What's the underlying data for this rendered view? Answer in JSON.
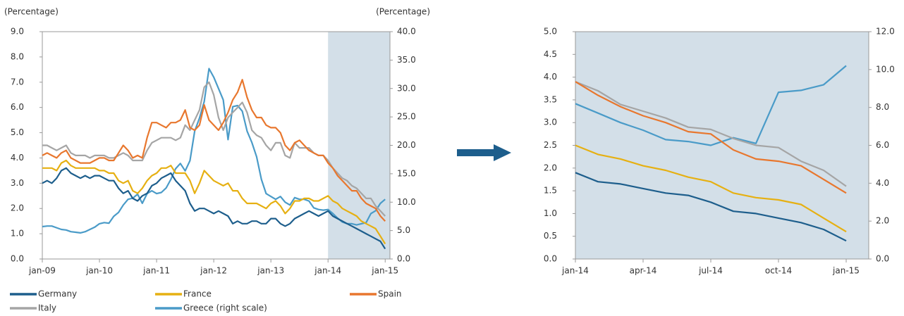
{
  "chart_data": [
    {
      "type": "line",
      "y_label": "(Percentage)",
      "y2_label": "(Percentage)",
      "highlight_range": [
        "2014-01",
        "2015-02"
      ],
      "xlim": [
        "2009-01",
        "2015-02"
      ],
      "xticks": [
        {
          "value": "2009-01",
          "label": "jan-09"
        },
        {
          "value": "2010-01",
          "label": "jan-10"
        },
        {
          "value": "2011-01",
          "label": "jan-11"
        },
        {
          "value": "2012-01",
          "label": "jan-12"
        },
        {
          "value": "2013-01",
          "label": "jan-13"
        },
        {
          "value": "2014-01",
          "label": "jan-14"
        },
        {
          "value": "2015-01",
          "label": "jan-15"
        }
      ],
      "ylim": [
        0,
        9
      ],
      "yticks": [
        {
          "value": 0,
          "label": "0.0"
        },
        {
          "value": 1,
          "label": "1.0"
        },
        {
          "value": 2,
          "label": "2.0"
        },
        {
          "value": 3,
          "label": "3.0"
        },
        {
          "value": 4,
          "label": "4.0"
        },
        {
          "value": 5,
          "label": "5.0"
        },
        {
          "value": 6,
          "label": "6.0"
        },
        {
          "value": 7,
          "label": "7.0"
        },
        {
          "value": 8,
          "label": "8.0"
        },
        {
          "value": 9,
          "label": "9.0"
        }
      ],
      "y2lim": [
        0,
        40
      ],
      "y2ticks": [
        {
          "value": 0,
          "label": "0.0"
        },
        {
          "value": 5,
          "label": "5.0"
        },
        {
          "value": 10,
          "label": "10.0"
        },
        {
          "value": 15,
          "label": "15.0"
        },
        {
          "value": 20,
          "label": "20.0"
        },
        {
          "value": 25,
          "label": "25.0"
        },
        {
          "value": 30,
          "label": "30.0"
        },
        {
          "value": 35,
          "label": "35.0"
        },
        {
          "value": 40,
          "label": "40.0"
        }
      ],
      "x": [
        "2009-01",
        "2009-02",
        "2009-03",
        "2009-04",
        "2009-05",
        "2009-06",
        "2009-07",
        "2009-08",
        "2009-09",
        "2009-10",
        "2009-11",
        "2009-12",
        "2010-01",
        "2010-02",
        "2010-03",
        "2010-04",
        "2010-05",
        "2010-06",
        "2010-07",
        "2010-08",
        "2010-09",
        "2010-10",
        "2010-11",
        "2010-12",
        "2011-01",
        "2011-02",
        "2011-03",
        "2011-04",
        "2011-05",
        "2011-06",
        "2011-07",
        "2011-08",
        "2011-09",
        "2011-10",
        "2011-11",
        "2011-12",
        "2012-01",
        "2012-02",
        "2012-03",
        "2012-04",
        "2012-05",
        "2012-06",
        "2012-07",
        "2012-08",
        "2012-09",
        "2012-10",
        "2012-11",
        "2012-12",
        "2013-01",
        "2013-02",
        "2013-03",
        "2013-04",
        "2013-05",
        "2013-06",
        "2013-07",
        "2013-08",
        "2013-09",
        "2013-10",
        "2013-11",
        "2013-12",
        "2014-01",
        "2014-02",
        "2014-03",
        "2014-04",
        "2014-05",
        "2014-06",
        "2014-07",
        "2014-08",
        "2014-09",
        "2014-10",
        "2014-11",
        "2014-12",
        "2015-01"
      ],
      "series": [
        {
          "name": "Germany",
          "color": "#1d5e8c",
          "values": [
            3.0,
            3.1,
            3.0,
            3.2,
            3.5,
            3.6,
            3.4,
            3.3,
            3.2,
            3.3,
            3.2,
            3.3,
            3.3,
            3.2,
            3.1,
            3.1,
            2.8,
            2.6,
            2.7,
            2.4,
            2.3,
            2.5,
            2.6,
            2.9,
            3.0,
            3.2,
            3.3,
            3.4,
            3.1,
            2.9,
            2.7,
            2.2,
            1.9,
            2.0,
            2.0,
            1.9,
            1.8,
            1.9,
            1.8,
            1.7,
            1.4,
            1.5,
            1.4,
            1.4,
            1.5,
            1.5,
            1.4,
            1.4,
            1.6,
            1.6,
            1.4,
            1.3,
            1.4,
            1.6,
            1.7,
            1.8,
            1.9,
            1.8,
            1.7,
            1.8,
            1.9,
            1.7,
            1.6,
            1.5,
            1.4,
            1.3,
            1.2,
            1.1,
            1.0,
            0.9,
            0.8,
            0.7,
            0.4
          ]
        },
        {
          "name": "France",
          "color": "#e6b012",
          "values": [
            3.6,
            3.6,
            3.6,
            3.5,
            3.8,
            3.9,
            3.7,
            3.6,
            3.6,
            3.6,
            3.6,
            3.6,
            3.5,
            3.5,
            3.4,
            3.4,
            3.1,
            3.0,
            3.1,
            2.7,
            2.6,
            2.8,
            3.1,
            3.3,
            3.4,
            3.6,
            3.6,
            3.7,
            3.4,
            3.4,
            3.4,
            3.1,
            2.6,
            3.0,
            3.5,
            3.3,
            3.1,
            3.0,
            2.9,
            3.0,
            2.7,
            2.7,
            2.4,
            2.2,
            2.2,
            2.2,
            2.1,
            2.0,
            2.2,
            2.3,
            2.1,
            1.8,
            2.0,
            2.3,
            2.3,
            2.4,
            2.4,
            2.3,
            2.3,
            2.4,
            2.5,
            2.3,
            2.2,
            2.0,
            1.9,
            1.8,
            1.7,
            1.5,
            1.4,
            1.3,
            1.2,
            0.9,
            0.6
          ]
        },
        {
          "name": "Spain",
          "color": "#e8772e",
          "values": [
            4.1,
            4.2,
            4.1,
            4.0,
            4.2,
            4.3,
            4.0,
            3.9,
            3.8,
            3.8,
            3.8,
            3.9,
            4.0,
            4.0,
            3.9,
            3.9,
            4.2,
            4.5,
            4.3,
            4.0,
            4.1,
            4.0,
            4.8,
            5.4,
            5.4,
            5.3,
            5.2,
            5.4,
            5.4,
            5.5,
            5.9,
            5.2,
            5.1,
            5.3,
            6.1,
            5.5,
            5.3,
            5.1,
            5.4,
            5.8,
            6.3,
            6.6,
            7.1,
            6.4,
            5.9,
            5.6,
            5.6,
            5.3,
            5.2,
            5.2,
            5.0,
            4.5,
            4.3,
            4.6,
            4.7,
            4.5,
            4.3,
            4.2,
            4.1,
            4.1,
            3.8,
            3.6,
            3.3,
            3.1,
            2.9,
            2.7,
            2.7,
            2.4,
            2.2,
            2.1,
            2.0,
            1.7,
            1.5
          ]
        },
        {
          "name": "Italy",
          "color": "#a5a5a5",
          "values": [
            4.5,
            4.5,
            4.4,
            4.3,
            4.4,
            4.5,
            4.2,
            4.1,
            4.1,
            4.1,
            4.0,
            4.1,
            4.1,
            4.1,
            4.0,
            4.0,
            4.1,
            4.2,
            4.1,
            3.9,
            3.9,
            3.9,
            4.3,
            4.6,
            4.7,
            4.8,
            4.8,
            4.8,
            4.7,
            4.8,
            5.3,
            5.1,
            5.5,
            5.9,
            6.8,
            7.0,
            6.5,
            5.6,
            5.1,
            5.6,
            5.8,
            6.0,
            6.2,
            5.8,
            5.1,
            4.9,
            4.8,
            4.5,
            4.3,
            4.6,
            4.6,
            4.1,
            4.0,
            4.6,
            4.4,
            4.4,
            4.4,
            4.2,
            4.1,
            4.1,
            3.9,
            3.6,
            3.4,
            3.2,
            3.1,
            2.9,
            2.8,
            2.6,
            2.4,
            2.4,
            2.1,
            1.9,
            1.7
          ]
        },
        {
          "name": "Greece (right scale)",
          "color": "#4a9bc8",
          "axis": "y2",
          "values": [
            5.7,
            5.8,
            5.8,
            5.5,
            5.2,
            5.1,
            4.8,
            4.7,
            4.6,
            4.8,
            5.2,
            5.6,
            6.2,
            6.4,
            6.3,
            7.5,
            8.2,
            9.5,
            10.5,
            10.7,
            11.4,
            9.8,
            11.5,
            12.0,
            11.5,
            11.7,
            12.5,
            14.0,
            15.9,
            16.8,
            15.5,
            17.3,
            22.5,
            24.8,
            27.7,
            33.5,
            32.0,
            30.0,
            28.0,
            21.0,
            26.8,
            27.0,
            26.0,
            22.5,
            20.5,
            18.0,
            14.0,
            11.5,
            11.0,
            10.5,
            11.0,
            10.0,
            9.5,
            10.8,
            10.5,
            10.5,
            10.2,
            9.0,
            8.7,
            8.6,
            8.7,
            8.0,
            7.2,
            6.5,
            6.2,
            6.2,
            6.0,
            6.2,
            6.4,
            8.0,
            8.5,
            9.8,
            10.5
          ]
        }
      ]
    },
    {
      "type": "line",
      "highlight_range": [
        "2014-01",
        "2015-02"
      ],
      "xlim": [
        "2014-01",
        "2015-02"
      ],
      "xticks": [
        {
          "value": "2014-01",
          "label": "jan-14"
        },
        {
          "value": "2014-04",
          "label": "apr-14"
        },
        {
          "value": "2014-07",
          "label": "jul-14"
        },
        {
          "value": "2014-10",
          "label": "oct-14"
        },
        {
          "value": "2015-01",
          "label": "jan-15"
        }
      ],
      "ylim": [
        0,
        5
      ],
      "yticks": [
        {
          "value": 0,
          "label": "0.0"
        },
        {
          "value": 0.5,
          "label": "0.5"
        },
        {
          "value": 1,
          "label": "1.0"
        },
        {
          "value": 1.5,
          "label": "1.5"
        },
        {
          "value": 2,
          "label": "2.0"
        },
        {
          "value": 2.5,
          "label": "2.5"
        },
        {
          "value": 3,
          "label": "3.0"
        },
        {
          "value": 3.5,
          "label": "3.5"
        },
        {
          "value": 4,
          "label": "4.0"
        },
        {
          "value": 4.5,
          "label": "4.5"
        },
        {
          "value": 5,
          "label": "5.0"
        }
      ],
      "y2lim": [
        0,
        12
      ],
      "y2ticks": [
        {
          "value": 0,
          "label": "0.0"
        },
        {
          "value": 2,
          "label": "2.0"
        },
        {
          "value": 4,
          "label": "4.0"
        },
        {
          "value": 6,
          "label": "6.0"
        },
        {
          "value": 8,
          "label": "8.0"
        },
        {
          "value": 10,
          "label": "10.0"
        },
        {
          "value": 12,
          "label": "12.0"
        }
      ],
      "x": [
        "2014-01",
        "2014-02",
        "2014-03",
        "2014-04",
        "2014-05",
        "2014-06",
        "2014-07",
        "2014-08",
        "2014-09",
        "2014-10",
        "2014-11",
        "2014-12",
        "2015-01"
      ],
      "series": [
        {
          "color": "#1d5e8c",
          "values": [
            1.9,
            1.7,
            1.65,
            1.55,
            1.45,
            1.4,
            1.25,
            1.05,
            1.0,
            0.9,
            0.8,
            0.65,
            0.4
          ]
        },
        {
          "color": "#e6b012",
          "values": [
            2.5,
            2.3,
            2.2,
            2.05,
            1.95,
            1.8,
            1.7,
            1.45,
            1.35,
            1.3,
            1.2,
            0.9,
            0.6
          ]
        },
        {
          "color": "#e8772e",
          "values": [
            3.9,
            3.6,
            3.35,
            3.15,
            3.0,
            2.8,
            2.75,
            2.4,
            2.2,
            2.15,
            2.05,
            1.75,
            1.45
          ]
        },
        {
          "color": "#a5a5a5",
          "values": [
            3.9,
            3.7,
            3.4,
            3.25,
            3.1,
            2.9,
            2.85,
            2.65,
            2.5,
            2.45,
            2.15,
            1.95,
            1.6
          ]
        },
        {
          "color": "#4a9bc8",
          "axis": "y2",
          "values": [
            8.2,
            7.7,
            7.2,
            6.8,
            6.3,
            6.2,
            6.0,
            6.4,
            6.1,
            8.8,
            8.9,
            9.2,
            10.2
          ]
        }
      ]
    }
  ]
}
